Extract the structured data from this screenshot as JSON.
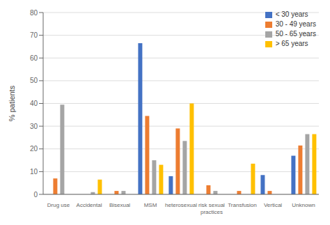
{
  "chart_data": {
    "type": "bar",
    "ylabel": "% patients",
    "categories": [
      "Drug use",
      "Accidental",
      "Bisexual",
      "MSM",
      "heterosexual",
      "risk sexual\npractices",
      "Transfusion",
      "Vertical",
      "Unknown"
    ],
    "series": [
      {
        "name": "< 30 years",
        "color": "#4472C4",
        "values": [
          0,
          0,
          0,
          66.5,
          8,
          0,
          0,
          8.5,
          17
        ]
      },
      {
        "name": "30 - 49 years",
        "color": "#ED7D31",
        "values": [
          7,
          0,
          1.5,
          34.5,
          29,
          4,
          1.5,
          1.5,
          21.5
        ]
      },
      {
        "name": "50 - 65 years",
        "color": "#A5A5A5",
        "values": [
          39.5,
          1,
          1.5,
          15,
          23.5,
          1.5,
          0,
          0,
          26.5
        ]
      },
      {
        "name": "> 65 years",
        "color": "#FFC000",
        "values": [
          0,
          6.5,
          0,
          13,
          40,
          0,
          13.5,
          0,
          26.5
        ]
      }
    ],
    "ylim": [
      0,
      80
    ],
    "yticks": [
      0,
      10,
      20,
      30,
      40,
      50,
      60,
      70,
      80
    ],
    "grid": true,
    "legend": "upper right"
  }
}
